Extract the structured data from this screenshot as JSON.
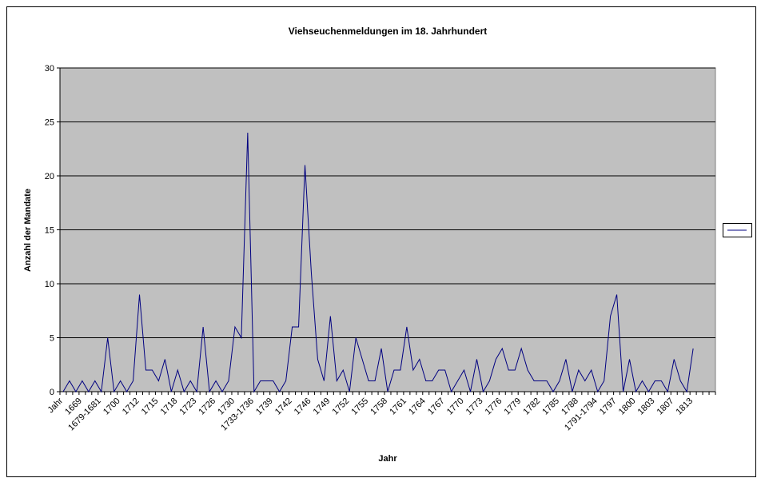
{
  "chart_data": {
    "type": "line",
    "title": "Viehseuchenmeldungen im 18. Jahrhundert",
    "x_label": "Jahr",
    "y_label": "Anzahl der Mandate",
    "categories": [
      "Jahr",
      null,
      null,
      "1669",
      null,
      null,
      "1679-1681",
      null,
      null,
      "1700",
      null,
      null,
      "1712",
      null,
      null,
      "1715",
      null,
      null,
      "1718",
      null,
      null,
      "1723",
      null,
      null,
      "1726",
      null,
      null,
      "1730",
      null,
      null,
      "1733-1736",
      null,
      null,
      "1739",
      null,
      null,
      "1742",
      null,
      null,
      "1746",
      null,
      null,
      "1749",
      null,
      null,
      "1752",
      null,
      null,
      "1755",
      null,
      null,
      "1758",
      null,
      null,
      "1761",
      null,
      null,
      "1764",
      null,
      null,
      "1767",
      null,
      null,
      "1770",
      null,
      null,
      "1773",
      null,
      null,
      "1776",
      null,
      null,
      "1779",
      null,
      null,
      "1782",
      null,
      null,
      "1785",
      null,
      null,
      "1788",
      null,
      null,
      "1791-1794",
      null,
      null,
      "1797",
      null,
      null,
      "1800",
      null,
      null,
      "1803",
      null,
      null,
      "1807",
      null,
      null,
      "1813",
      null,
      null,
      null
    ],
    "series": [
      {
        "color": "#000080",
        "values": [
          0,
          1,
          0,
          1,
          0,
          1,
          0,
          5,
          0,
          1,
          0,
          1,
          9,
          2,
          2,
          1,
          3,
          0,
          2,
          0,
          1,
          0,
          6,
          0,
          1,
          0,
          1,
          6,
          5,
          24,
          0,
          1,
          1,
          1,
          0,
          1,
          6,
          6,
          21,
          11,
          3,
          1,
          7,
          1,
          2,
          0,
          5,
          3,
          1,
          1,
          4,
          0,
          2,
          2,
          6,
          2,
          3,
          1,
          1,
          2,
          2,
          0,
          1,
          2,
          0,
          3,
          0,
          1,
          3,
          4,
          2,
          2,
          4,
          2,
          1,
          1,
          1,
          0,
          1,
          3,
          0,
          2,
          1,
          2,
          0,
          1,
          7,
          9,
          0,
          3,
          0,
          1,
          0,
          1,
          1,
          0,
          3,
          1,
          0,
          4,
          null,
          null,
          null
        ]
      }
    ],
    "ylim": [
      0,
      30
    ],
    "yticks": [
      0,
      5,
      10,
      15,
      20,
      25,
      30
    ],
    "grid": true,
    "legend": "right",
    "plot_background": "#c0c0c0"
  }
}
